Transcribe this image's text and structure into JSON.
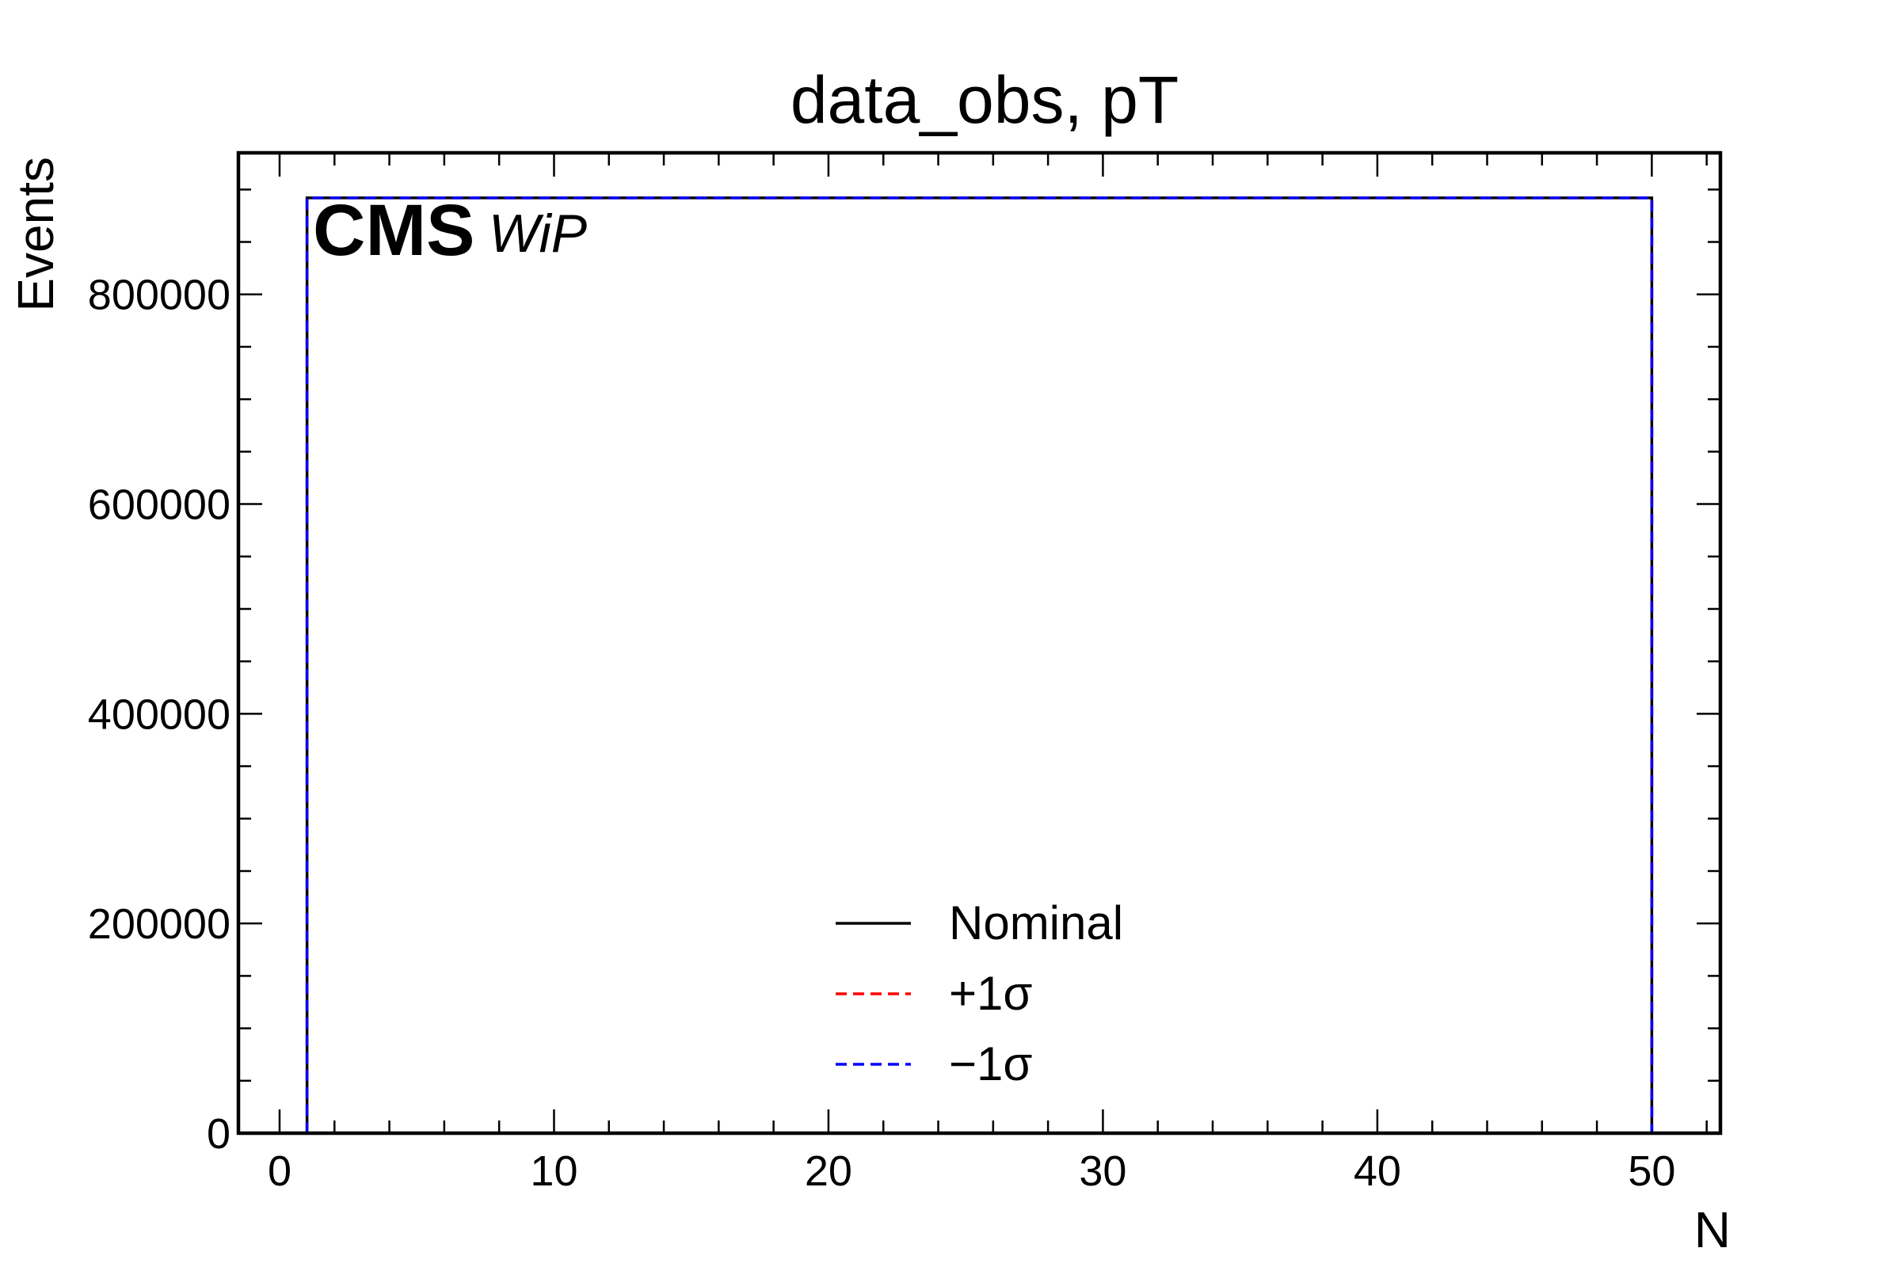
{
  "chart_data": {
    "type": "line",
    "title": "data_obs, pT",
    "xlabel": "N",
    "ylabel": "Events",
    "xlim": [
      -1.5,
      52.5
    ],
    "ylim": [
      0,
      935000
    ],
    "x_ticks": [
      0,
      10,
      20,
      30,
      40,
      50
    ],
    "x_tick_labels": [
      "0",
      "10",
      "20",
      "30",
      "40",
      "50"
    ],
    "y_ticks": [
      0,
      200000,
      400000,
      600000,
      800000
    ],
    "y_tick_labels": [
      "0",
      "200000",
      "400000",
      "600000",
      "800000"
    ],
    "x_minor_step": 2,
    "y_minor_step": 50000,
    "histogram": {
      "bin_low": 1,
      "bin_high": 50,
      "value": 892000
    },
    "series": [
      {
        "name": "Nominal",
        "style": "solid",
        "color": "#000000"
      },
      {
        "name": "+1σ",
        "style": "dashed",
        "color": "#ff0000"
      },
      {
        "name": "−1σ",
        "style": "dashed",
        "color": "#0000ff"
      }
    ],
    "legend_position": "bottom-center",
    "grid": false,
    "experiment_label": "CMS",
    "experiment_sublabel": "WiP"
  }
}
